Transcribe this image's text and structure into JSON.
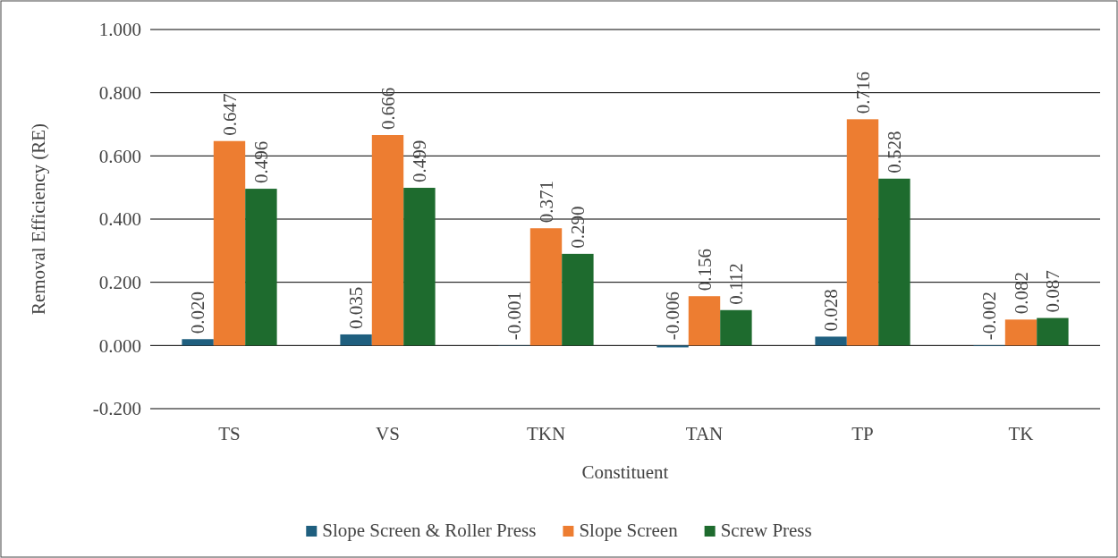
{
  "chart_data": {
    "type": "bar",
    "xlabel": "Constituent",
    "ylabel": "Removal Efficiency (RE)",
    "categories": [
      "TS",
      "VS",
      "TKN",
      "TAN",
      "TP",
      "TK"
    ],
    "series": [
      {
        "name": "Slope Screen & Roller Press",
        "color": "#1f5f7f",
        "values": [
          0.02,
          0.035,
          -0.001,
          -0.006,
          0.028,
          -0.002
        ],
        "value_labels": [
          "0.020",
          "0.035",
          "-0.001",
          "-0.006",
          "0.028",
          "-0.002"
        ]
      },
      {
        "name": "Slope Screen",
        "color": "#ed7d31",
        "values": [
          0.647,
          0.666,
          0.371,
          0.156,
          0.716,
          0.082
        ],
        "value_labels": [
          "0.647",
          "0.666",
          "0.371",
          "0.156",
          "0.716",
          "0.082"
        ]
      },
      {
        "name": "Screw Press",
        "color": "#1e6b2e",
        "values": [
          0.496,
          0.499,
          0.29,
          0.112,
          0.528,
          0.087
        ],
        "value_labels": [
          "0.496",
          "0.499",
          "0.290",
          "0.112",
          "0.528",
          "0.087"
        ]
      }
    ],
    "ylim": [
      -0.2,
      1.0
    ],
    "yticks": [
      {
        "value": -0.2,
        "label": "-0.200"
      },
      {
        "value": 0,
        "label": "0.000"
      },
      {
        "value": 0.2,
        "label": "0.200"
      },
      {
        "value": 0.4,
        "label": "0.400"
      },
      {
        "value": 0.6,
        "label": "0.600"
      },
      {
        "value": 0.8,
        "label": "0.800"
      },
      {
        "value": 1.0,
        "label": "1.000"
      }
    ],
    "grid": "y",
    "legend": "bottom"
  }
}
